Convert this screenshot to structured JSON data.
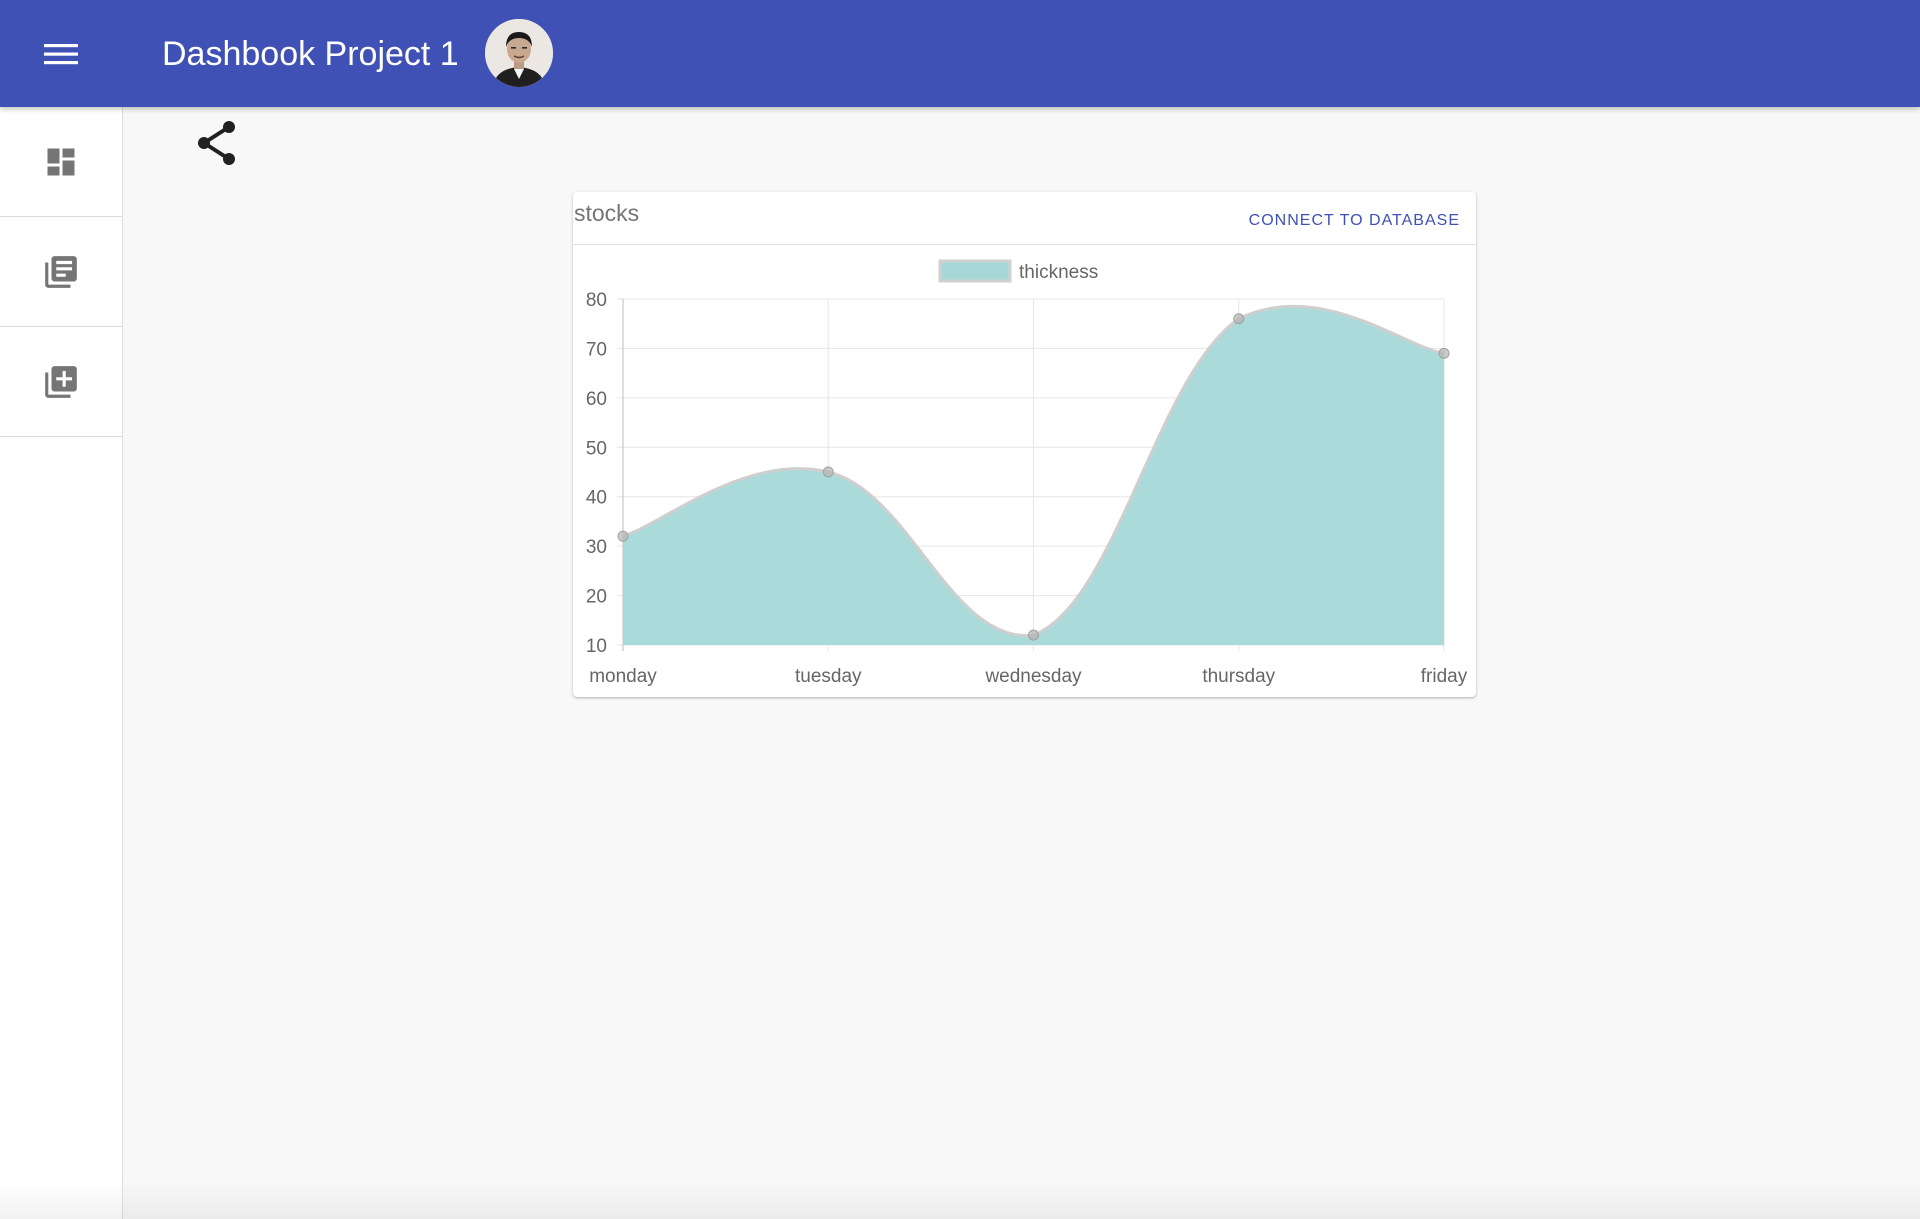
{
  "app": {
    "title": "Dashbook Project 1",
    "accent_color": "#3f51b5",
    "menu_icon": "menu-icon",
    "avatar_icon": "user-avatar"
  },
  "sidebar": {
    "items": [
      {
        "icon": "dashboard-icon"
      },
      {
        "icon": "library-books-icon"
      },
      {
        "icon": "library-add-icon"
      }
    ]
  },
  "toolbar": {
    "share_icon": "share-icon"
  },
  "card": {
    "title": "stocks",
    "action_label": "CONNECT TO DATABASE"
  },
  "chart_data": {
    "type": "area",
    "categories": [
      "monday",
      "tuesday",
      "wednesday",
      "thursday",
      "friday"
    ],
    "series": [
      {
        "name": "thickness",
        "values": [
          32,
          45,
          12,
          76,
          69
        ]
      }
    ],
    "ylim": [
      10,
      80
    ],
    "yticks": [
      80,
      70,
      60,
      50,
      40,
      30,
      20,
      10
    ],
    "grid": true,
    "smooth": true,
    "legend": "top-center",
    "fill_color": "#a6d8d8",
    "line_color": "#cfcfcf",
    "point_color": "#b3b3b3"
  }
}
